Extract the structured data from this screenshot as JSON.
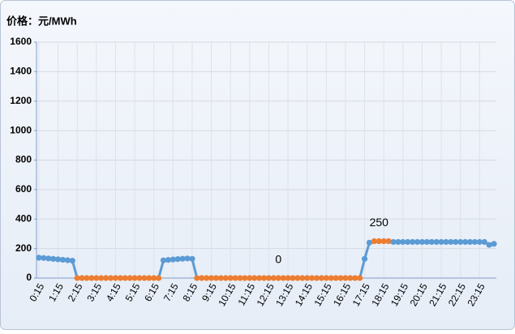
{
  "chart_data": {
    "type": "line",
    "title": "价格：元/MWh",
    "categories": [
      "0:15",
      null,
      null,
      null,
      "1:15",
      null,
      null,
      null,
      "2:15",
      null,
      null,
      null,
      "3:15",
      null,
      null,
      null,
      "4:15",
      null,
      null,
      null,
      "5:15",
      null,
      null,
      null,
      "6:15",
      null,
      null,
      null,
      "7:15",
      null,
      null,
      null,
      "8:15",
      null,
      null,
      null,
      "9:15",
      null,
      null,
      null,
      "10:15",
      null,
      null,
      null,
      "11:15",
      null,
      null,
      null,
      "12:15",
      null,
      null,
      null,
      "13:15",
      null,
      null,
      null,
      "14:15",
      null,
      null,
      null,
      "15:15",
      null,
      null,
      null,
      "16:15",
      null,
      null,
      null,
      "17:15",
      null,
      null,
      null,
      "18:15",
      null,
      null,
      null,
      "19:15",
      null,
      null,
      null,
      "20:15",
      null,
      null,
      null,
      "21:15",
      null,
      null,
      null,
      "22:15",
      null,
      null,
      null,
      "23:15",
      null,
      null,
      null
    ],
    "series": [
      {
        "values": [
          138,
          136,
          133,
          130,
          127,
          124,
          121,
          118,
          0,
          0,
          0,
          0,
          0,
          0,
          0,
          0,
          0,
          0,
          0,
          0,
          0,
          0,
          0,
          0,
          0,
          0,
          120,
          123,
          126,
          129,
          131,
          133,
          130,
          0,
          0,
          0,
          0,
          0,
          0,
          0,
          0,
          0,
          0,
          0,
          0,
          0,
          0,
          0,
          0,
          0,
          0,
          0,
          0,
          0,
          0,
          0,
          0,
          0,
          0,
          0,
          0,
          0,
          0,
          0,
          0,
          0,
          0,
          0,
          130,
          240,
          250,
          250,
          250,
          250,
          245,
          245,
          245,
          245,
          245,
          245,
          245,
          245,
          245,
          245,
          245,
          245,
          245,
          245,
          245,
          245,
          245,
          245,
          245,
          245,
          225,
          232
        ],
        "colors": [
          "#5b9bd5",
          "#5b9bd5",
          "#5b9bd5",
          "#5b9bd5",
          "#5b9bd5",
          "#5b9bd5",
          "#5b9bd5",
          "#5b9bd5",
          "#ed7d31",
          "#ed7d31",
          "#ed7d31",
          "#ed7d31",
          "#ed7d31",
          "#ed7d31",
          "#ed7d31",
          "#ed7d31",
          "#ed7d31",
          "#ed7d31",
          "#ed7d31",
          "#ed7d31",
          "#ed7d31",
          "#ed7d31",
          "#ed7d31",
          "#ed7d31",
          "#ed7d31",
          "#ed7d31",
          "#5b9bd5",
          "#5b9bd5",
          "#5b9bd5",
          "#5b9bd5",
          "#5b9bd5",
          "#5b9bd5",
          "#5b9bd5",
          "#ed7d31",
          "#ed7d31",
          "#ed7d31",
          "#ed7d31",
          "#ed7d31",
          "#ed7d31",
          "#ed7d31",
          "#ed7d31",
          "#ed7d31",
          "#ed7d31",
          "#ed7d31",
          "#ed7d31",
          "#ed7d31",
          "#ed7d31",
          "#ed7d31",
          "#ed7d31",
          "#ed7d31",
          "#ed7d31",
          "#ed7d31",
          "#ed7d31",
          "#ed7d31",
          "#ed7d31",
          "#ed7d31",
          "#ed7d31",
          "#ed7d31",
          "#ed7d31",
          "#ed7d31",
          "#ed7d31",
          "#ed7d31",
          "#ed7d31",
          "#ed7d31",
          "#ed7d31",
          "#ed7d31",
          "#ed7d31",
          "#ed7d31",
          "#5b9bd5",
          "#5b9bd5",
          "#ed7d31",
          "#ed7d31",
          "#ed7d31",
          "#ed7d31",
          "#5b9bd5",
          "#5b9bd5",
          "#5b9bd5",
          "#5b9bd5",
          "#5b9bd5",
          "#5b9bd5",
          "#5b9bd5",
          "#5b9bd5",
          "#5b9bd5",
          "#5b9bd5",
          "#5b9bd5",
          "#5b9bd5",
          "#5b9bd5",
          "#5b9bd5",
          "#5b9bd5",
          "#5b9bd5",
          "#5b9bd5",
          "#5b9bd5",
          "#5b9bd5",
          "#5b9bd5",
          "#5b9bd5",
          "#5b9bd5"
        ]
      }
    ],
    "annotations": [
      {
        "text": "0",
        "index": 50,
        "value": 0
      },
      {
        "text": "250",
        "index": 71,
        "value": 250
      }
    ],
    "ylim": [
      0,
      1600
    ],
    "yticks": [
      0,
      200,
      400,
      600,
      800,
      1000,
      1200,
      1400,
      1600
    ],
    "grid": true
  }
}
